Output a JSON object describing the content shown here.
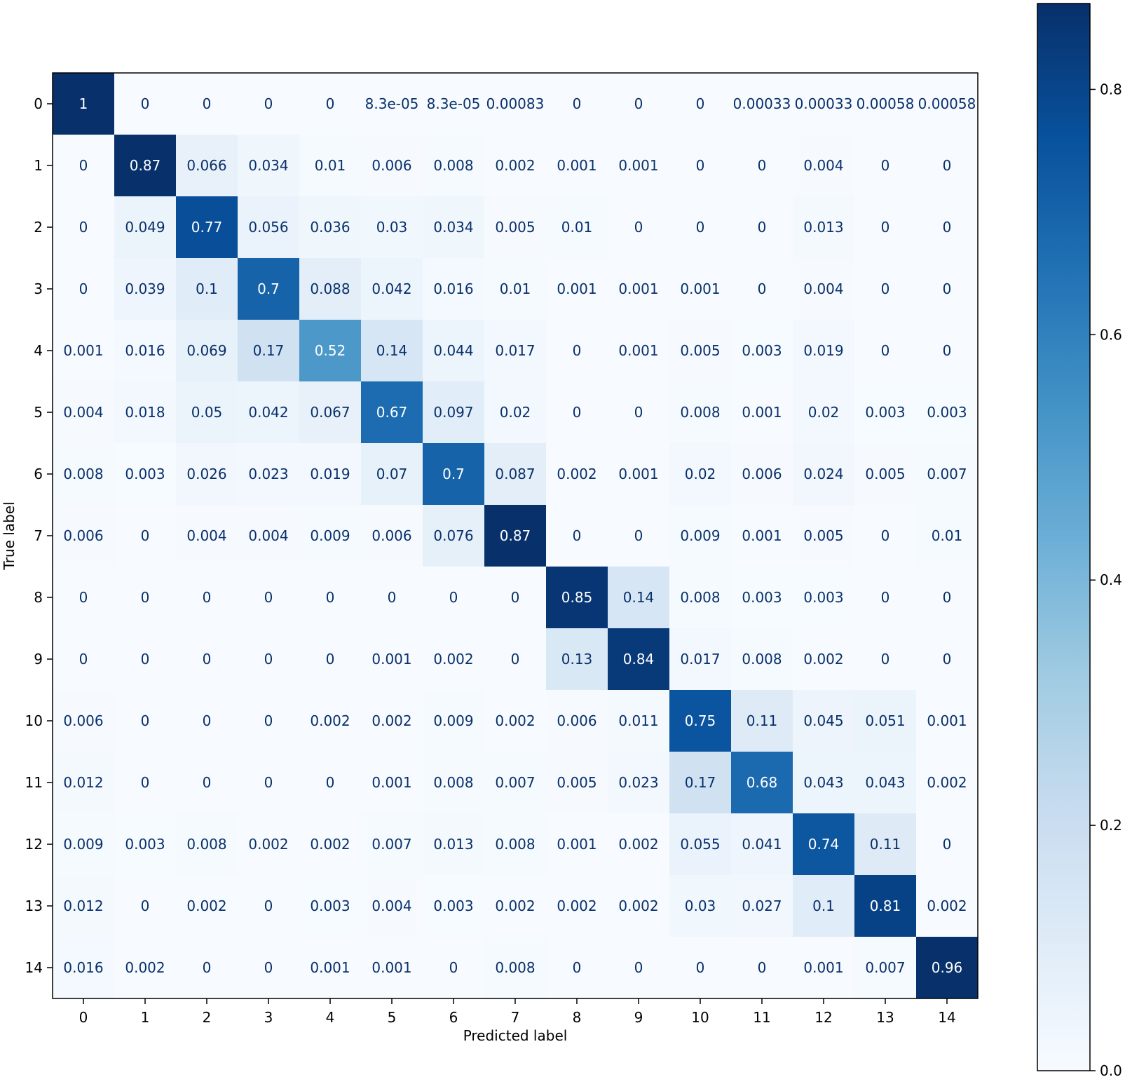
{
  "chart_data": {
    "type": "heatmap",
    "title": "",
    "xlabel": "Predicted label",
    "ylabel": "True label",
    "x_tick_labels": [
      "0",
      "1",
      "2",
      "3",
      "4",
      "5",
      "6",
      "7",
      "8",
      "9",
      "10",
      "11",
      "12",
      "13",
      "14"
    ],
    "y_tick_labels": [
      "0",
      "1",
      "2",
      "3",
      "4",
      "5",
      "6",
      "7",
      "8",
      "9",
      "10",
      "11",
      "12",
      "13",
      "14"
    ],
    "cell_labels": [
      [
        "1",
        "0",
        "0",
        "0",
        "0",
        "8.3e-05",
        "8.3e-05",
        "0.00083",
        "0",
        "0",
        "0",
        "0.00033",
        "0.00033",
        "0.00058",
        "0.00058"
      ],
      [
        "0",
        "0.87",
        "0.066",
        "0.034",
        "0.01",
        "0.006",
        "0.008",
        "0.002",
        "0.001",
        "0.001",
        "0",
        "0",
        "0.004",
        "0",
        "0"
      ],
      [
        "0",
        "0.049",
        "0.77",
        "0.056",
        "0.036",
        "0.03",
        "0.034",
        "0.005",
        "0.01",
        "0",
        "0",
        "0",
        "0.013",
        "0",
        "0"
      ],
      [
        "0",
        "0.039",
        "0.1",
        "0.7",
        "0.088",
        "0.042",
        "0.016",
        "0.01",
        "0.001",
        "0.001",
        "0.001",
        "0",
        "0.004",
        "0",
        "0"
      ],
      [
        "0.001",
        "0.016",
        "0.069",
        "0.17",
        "0.52",
        "0.14",
        "0.044",
        "0.017",
        "0",
        "0.001",
        "0.005",
        "0.003",
        "0.019",
        "0",
        "0"
      ],
      [
        "0.004",
        "0.018",
        "0.05",
        "0.042",
        "0.067",
        "0.67",
        "0.097",
        "0.02",
        "0",
        "0",
        "0.008",
        "0.001",
        "0.02",
        "0.003",
        "0.003"
      ],
      [
        "0.008",
        "0.003",
        "0.026",
        "0.023",
        "0.019",
        "0.07",
        "0.7",
        "0.087",
        "0.002",
        "0.001",
        "0.02",
        "0.006",
        "0.024",
        "0.005",
        "0.007"
      ],
      [
        "0.006",
        "0",
        "0.004",
        "0.004",
        "0.009",
        "0.006",
        "0.076",
        "0.87",
        "0",
        "0",
        "0.009",
        "0.001",
        "0.005",
        "0",
        "0.01"
      ],
      [
        "0",
        "0",
        "0",
        "0",
        "0",
        "0",
        "0",
        "0",
        "0.85",
        "0.14",
        "0.008",
        "0.003",
        "0.003",
        "0",
        "0"
      ],
      [
        "0",
        "0",
        "0",
        "0",
        "0",
        "0.001",
        "0.002",
        "0",
        "0.13",
        "0.84",
        "0.017",
        "0.008",
        "0.002",
        "0",
        "0"
      ],
      [
        "0.006",
        "0",
        "0",
        "0",
        "0.002",
        "0.002",
        "0.009",
        "0.002",
        "0.006",
        "0.011",
        "0.75",
        "0.11",
        "0.045",
        "0.051",
        "0.001"
      ],
      [
        "0.012",
        "0",
        "0",
        "0",
        "0",
        "0.001",
        "0.008",
        "0.007",
        "0.005",
        "0.023",
        "0.17",
        "0.68",
        "0.043",
        "0.043",
        "0.002"
      ],
      [
        "0.009",
        "0.003",
        "0.008",
        "0.002",
        "0.002",
        "0.007",
        "0.013",
        "0.008",
        "0.001",
        "0.002",
        "0.055",
        "0.041",
        "0.74",
        "0.11",
        "0"
      ],
      [
        "0.012",
        "0",
        "0.002",
        "0",
        "0.003",
        "0.004",
        "0.003",
        "0.002",
        "0.002",
        "0.002",
        "0.03",
        "0.027",
        "0.1",
        "0.81",
        "0.002"
      ],
      [
        "0.016",
        "0.002",
        "0",
        "0",
        "0.001",
        "0.001",
        "0",
        "0.008",
        "0",
        "0",
        "0",
        "0",
        "0.001",
        "0.007",
        "0.96"
      ]
    ],
    "value_range": [
      0.0,
      1.0
    ],
    "colormap": "Blues",
    "colorbar": {
      "ticks": [
        0.0,
        0.2,
        0.4,
        0.6,
        0.8
      ],
      "tick_labels": [
        "0.0",
        "0.2",
        "0.4",
        "0.6",
        "0.8"
      ],
      "max_shown": 0.87
    },
    "colors": {
      "cmap_low": "#f7fbff",
      "cmap_high": "#08306b",
      "text_dark": "#08306b",
      "text_light": "#ffffff",
      "axis": "#000000"
    }
  }
}
